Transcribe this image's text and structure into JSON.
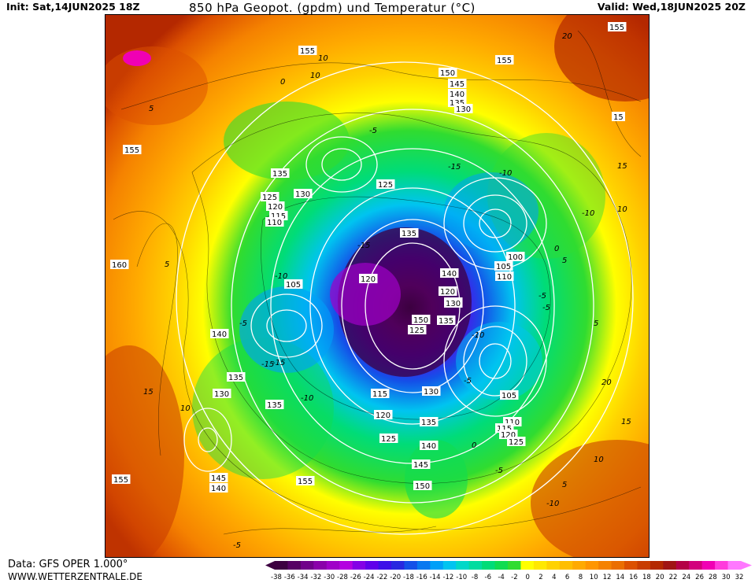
{
  "header": {
    "init": "Init: Sat,14JUN2025 18Z",
    "title": "850 hPa Geopot. (gpdm) und Temperatur (°C)",
    "valid": "Valid: Wed,18JUN2025 20Z"
  },
  "footer": {
    "data": "Data: GFS OPER 1.000°",
    "site": "WWW.WETTERZENTRALE.DE"
  },
  "colorbar": {
    "ticks": [
      "-38",
      "-36",
      "-34",
      "-32",
      "-30",
      "-28",
      "-26",
      "-24",
      "-22",
      "-20",
      "-18",
      "-16",
      "-14",
      "-12",
      "-10",
      "-8",
      "-6",
      "-4",
      "-2",
      "0",
      "2",
      "4",
      "6",
      "8",
      "10",
      "12",
      "14",
      "16",
      "18",
      "20",
      "22",
      "24",
      "26",
      "28",
      "30",
      "32"
    ],
    "colors": [
      "#3c0040",
      "#560064",
      "#70008a",
      "#8a00aa",
      "#a000c8",
      "#b400e0",
      "#8400e6",
      "#6000ea",
      "#3c10e8",
      "#2828e0",
      "#1450e8",
      "#0878f0",
      "#00a0f8",
      "#00c4f0",
      "#00d8c8",
      "#00dca0",
      "#00dc78",
      "#10dc50",
      "#30dc30",
      "#ffff00",
      "#ffe800",
      "#ffd200",
      "#ffbe00",
      "#ffaa00",
      "#ff9600",
      "#f58200",
      "#eb6e00",
      "#dc5000",
      "#c83c00",
      "#b42800",
      "#a01414",
      "#b40046",
      "#d2007d",
      "#f000b4",
      "#ff3cdc",
      "#ff78ff"
    ]
  },
  "map": {
    "description_labels": {
      "geopotential_labels": [
        "155",
        "155",
        "155",
        "150",
        "145",
        "140",
        "135",
        "130",
        "15",
        "155",
        "135",
        "125",
        "130",
        "125",
        "120",
        "115",
        "110",
        "135",
        "120",
        "140",
        "135",
        "130",
        "120",
        "150",
        "125",
        "135",
        "160",
        "105",
        "100",
        "105",
        "110",
        "140",
        "135",
        "130",
        "135",
        "115",
        "130",
        "120",
        "125",
        "135",
        "140",
        "145",
        "150",
        "155",
        "150",
        "145",
        "140",
        "155",
        "105",
        "110",
        "115",
        "120",
        "125"
      ],
      "temperature_labels": [
        "10",
        "0",
        "-5",
        "-15",
        "-10",
        "-10",
        "-15",
        "-15",
        "-5",
        "-10",
        "-15",
        "-5",
        "-10",
        "-5",
        "0",
        "5",
        "10",
        "15",
        "20",
        "5",
        "-5",
        "0",
        "-5",
        "-10",
        "5",
        "10",
        "15",
        "20",
        "15",
        "10",
        "5",
        "-5",
        "-10",
        "5",
        "10"
      ]
    }
  }
}
